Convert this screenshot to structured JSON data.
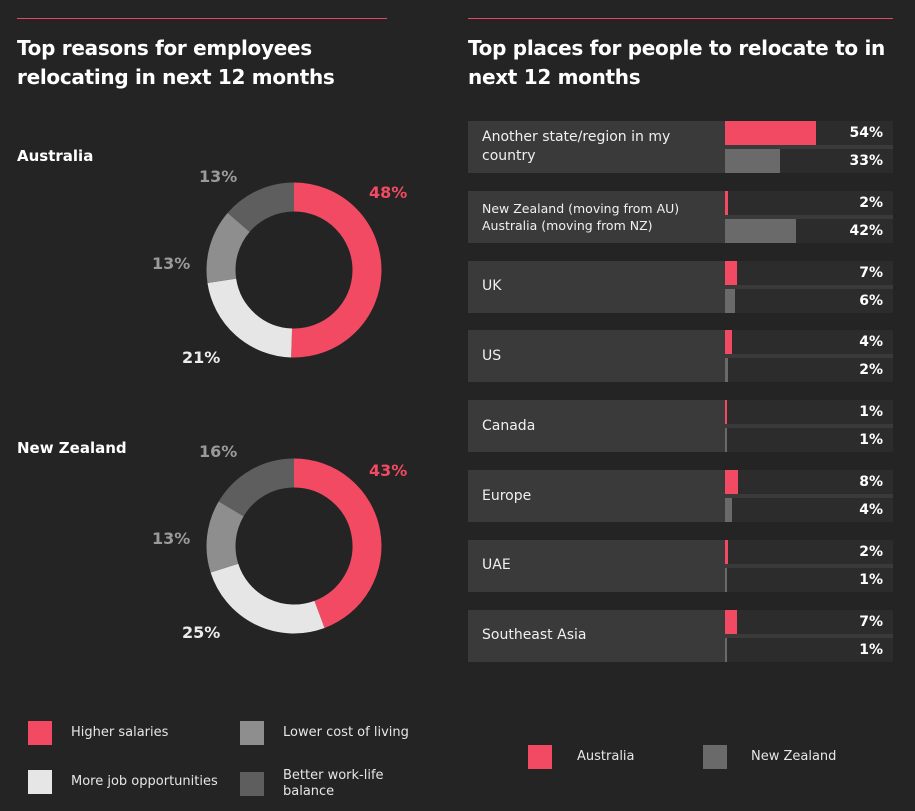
{
  "colors": {
    "higher_salaries": "#f14a62",
    "more_job_opportunities": "#e6e6e6",
    "lower_cost_of_living": "#8e8e8e",
    "better_work_life_balance": "#5e5e5e",
    "australia": "#f14a62",
    "new_zealand": "#6a6a6a"
  },
  "left": {
    "title": "Top reasons for employees relocating in next 12 months",
    "legend": {
      "higher_salaries": "Higher salaries",
      "lower_cost_of_living": "Lower cost of living",
      "more_job_opportunities": "More job opportunities",
      "better_work_life_balance": "Better work-life balance"
    }
  },
  "right": {
    "title": "Top places for people to relocate to in next 12 months",
    "legend": {
      "australia": "Australia",
      "new_zealand": "New Zealand"
    }
  },
  "chart_data": [
    {
      "type": "pie",
      "title": "Australia",
      "donut": true,
      "categories": [
        "Higher salaries",
        "More job opportunities",
        "Lower cost of living",
        "Better work-life balance"
      ],
      "values": [
        48,
        21,
        13,
        13
      ],
      "labels": [
        "48%",
        "21%",
        "13%",
        "13%"
      ]
    },
    {
      "type": "pie",
      "title": "New Zealand",
      "donut": true,
      "categories": [
        "Higher salaries",
        "More job opportunities",
        "Lower cost of living",
        "Better work-life balance"
      ],
      "values": [
        43,
        25,
        13,
        16
      ],
      "labels": [
        "43%",
        "25%",
        "13%",
        "16%"
      ]
    },
    {
      "type": "bar",
      "orientation": "horizontal",
      "categories": [
        "Another state/region in my country",
        "New Zealand (moving from AU) Australia (moving from NZ)",
        "UK",
        "US",
        "Canada",
        "Europe",
        "UAE",
        "Southeast Asia"
      ],
      "category_lines": [
        [
          "Another state/region in my",
          "country"
        ],
        [
          "New Zealand (moving from AU)",
          "Australia (moving from NZ)"
        ],
        [
          "UK"
        ],
        [
          "US"
        ],
        [
          "Canada"
        ],
        [
          "Europe"
        ],
        [
          "UAE"
        ],
        [
          "Southeast Asia"
        ]
      ],
      "series": [
        {
          "name": "Australia",
          "values": [
            54,
            2,
            7,
            4,
            1,
            8,
            2,
            7
          ],
          "labels": [
            "54%",
            "2%",
            "7%",
            "4%",
            "1%",
            "8%",
            "2%",
            "7%"
          ]
        },
        {
          "name": "New Zealand",
          "values": [
            33,
            42,
            6,
            2,
            1,
            4,
            1,
            1
          ],
          "labels": [
            "33%",
            "42%",
            "6%",
            "2%",
            "1%",
            "4%",
            "1%",
            "1%"
          ]
        }
      ],
      "xlim": [
        0,
        100
      ]
    }
  ]
}
